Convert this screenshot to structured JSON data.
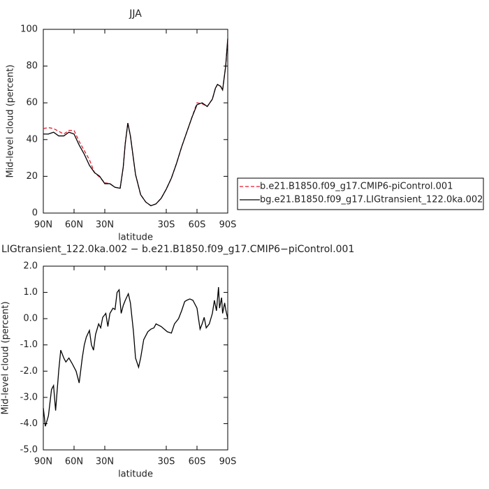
{
  "chart_data": [
    {
      "type": "line",
      "title": "JJA",
      "ylabel": "Mid-level cloud (percent)",
      "xlabel": "latitude",
      "x": [
        90,
        85,
        80,
        75,
        70,
        65,
        60,
        55,
        50,
        45,
        40,
        35,
        30,
        25,
        20,
        15,
        12,
        10,
        7.5,
        5,
        0,
        -5,
        -10,
        -15,
        -20,
        -25,
        -30,
        -35,
        -40,
        -45,
        -50,
        -55,
        -60,
        -65,
        -70,
        -75,
        -78,
        -80,
        -83,
        -85,
        -88,
        -90
      ],
      "series": [
        {
          "name": "b.e21.B1850.f09_g17.CMIP6-piControl.001",
          "color": "#e8182a",
          "dash": true,
          "values": [
            46,
            46.5,
            46,
            44.5,
            43,
            45,
            45,
            39,
            34,
            29,
            22,
            19.5,
            16.5,
            16,
            14,
            13.5,
            25,
            38,
            49,
            42,
            21,
            10,
            6,
            4,
            5,
            8,
            13,
            19,
            27,
            36,
            44,
            52,
            60,
            59.5,
            58,
            62,
            68,
            70,
            69,
            67,
            80,
            94
          ]
        },
        {
          "name": "bg.e21.B1850.f09_g17.LIGtransient_122.0ka.002",
          "color": "#000000",
          "dash": false,
          "values": [
            43,
            43,
            44,
            42,
            42,
            44,
            43,
            37,
            32,
            26,
            22,
            20,
            16,
            16,
            14,
            13.5,
            25,
            38,
            49,
            42,
            21,
            10,
            6,
            4,
            5,
            8,
            13,
            19,
            27,
            36,
            44,
            52,
            59,
            60,
            58,
            62,
            68,
            70,
            69,
            67,
            80,
            95
          ]
        }
      ],
      "xlim": [
        90,
        -90
      ],
      "xticks": [
        {
          "value": 90,
          "label": "90N"
        },
        {
          "value": 60,
          "label": "60N"
        },
        {
          "value": 30,
          "label": "30N"
        },
        {
          "value": -30,
          "label": "30S"
        },
        {
          "value": -60,
          "label": "60S"
        },
        {
          "value": -90,
          "label": "90S"
        }
      ],
      "ylim": [
        0,
        100
      ],
      "yticks": [
        0,
        20,
        40,
        60,
        80,
        100
      ],
      "legend": "right"
    },
    {
      "type": "line",
      "title": "LIGtransient_122.0ka.002 − b.e21.B1850.f09_g17.CMIP6−piControl.001",
      "ylabel": "Mid-level cloud (percent)",
      "xlabel": "latitude",
      "x": [
        90,
        88,
        85,
        82,
        80,
        78,
        75,
        73,
        70,
        68,
        65,
        62,
        58,
        55,
        52,
        50,
        48,
        45,
        43,
        41,
        39,
        36,
        34,
        32,
        29,
        27,
        25,
        22,
        20,
        18,
        16,
        14,
        12,
        10,
        7,
        5,
        2,
        0,
        -3,
        -5,
        -8,
        -12,
        -15,
        -18,
        -20,
        -25,
        -31,
        -35,
        -38,
        -42,
        -45,
        -48,
        -50,
        -53,
        -56,
        -60,
        -63,
        -65,
        -67,
        -69,
        -72,
        -75,
        -77,
        -79,
        -81,
        -82,
        -84,
        -85,
        -87,
        -88,
        -90
      ],
      "series": [
        {
          "color": "#000000",
          "values": [
            -3.4,
            -4.1,
            -3.7,
            -2.7,
            -2.55,
            -3.5,
            -2.0,
            -1.2,
            -1.5,
            -1.65,
            -1.5,
            -1.7,
            -2.0,
            -2.45,
            -1.5,
            -1.0,
            -0.7,
            -0.45,
            -1.0,
            -1.2,
            -0.6,
            -0.2,
            -0.35,
            0.05,
            0.2,
            -0.3,
            0.2,
            0.4,
            0.35,
            1.0,
            1.1,
            0.2,
            0.5,
            0.7,
            0.95,
            0.6,
            -0.5,
            -1.5,
            -1.85,
            -1.5,
            -0.8,
            -0.5,
            -0.4,
            -0.35,
            -0.2,
            -0.3,
            -0.5,
            -0.55,
            -0.2,
            0.0,
            0.3,
            0.65,
            0.7,
            0.75,
            0.7,
            0.4,
            -0.4,
            -0.2,
            0.05,
            -0.35,
            -0.2,
            0.2,
            0.7,
            0.3,
            1.2,
            0.4,
            0.8,
            0.2,
            0.6,
            0.35,
            0.0
          ]
        }
      ],
      "xlim": [
        90,
        -90
      ],
      "xticks": [
        {
          "value": 90,
          "label": "90N"
        },
        {
          "value": 60,
          "label": "60N"
        },
        {
          "value": 30,
          "label": "30N"
        },
        {
          "value": -30,
          "label": "30S"
        },
        {
          "value": -60,
          "label": "60S"
        },
        {
          "value": -90,
          "label": "90S"
        }
      ],
      "ylim": [
        -5,
        2
      ],
      "yticks": [
        {
          "value": -5,
          "label": "-5.0"
        },
        {
          "value": -4,
          "label": "-4.0"
        },
        {
          "value": -3,
          "label": "-3.0"
        },
        {
          "value": -2,
          "label": "-2.0"
        },
        {
          "value": -1,
          "label": "-1.0"
        },
        {
          "value": 0,
          "label": "0.0"
        },
        {
          "value": 1,
          "label": "1.0"
        },
        {
          "value": 2,
          "label": "2.0"
        }
      ]
    }
  ]
}
